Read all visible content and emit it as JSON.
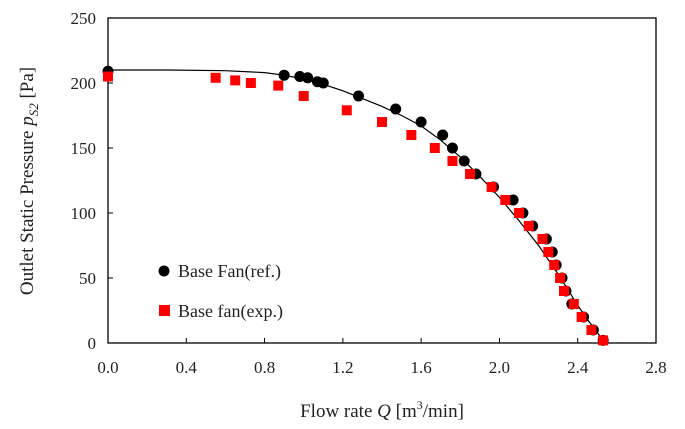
{
  "chart_data": {
    "type": "scatter",
    "title": "",
    "xlabel": "Flow rate Q [m³/min]",
    "ylabel": "Outlet Static Pressure p_S2 [Pa]",
    "xlabel_parts": {
      "prefix": "Flow rate ",
      "var": "Q",
      "unit_pre": " [m",
      "sup": "3",
      "unit_post": "/min]"
    },
    "ylabel_parts": {
      "prefix": "Outlet Static Pressure ",
      "var": "p",
      "sub": "S2",
      "unit": " [Pa]"
    },
    "xlim": [
      0,
      2.8
    ],
    "ylim": [
      0,
      250
    ],
    "x_ticks": [
      "0.0",
      "0.4",
      "0.8",
      "1.2",
      "1.6",
      "2.0",
      "2.4",
      "2.8"
    ],
    "y_ticks": [
      "0",
      "50",
      "100",
      "150",
      "200",
      "250"
    ],
    "grid": false,
    "legend_position": "bottom-left",
    "series": [
      {
        "name": "Base Fan(ref.)",
        "marker": "circle",
        "color": "#000000",
        "x": [
          0.0,
          0.9,
          0.98,
          1.02,
          1.07,
          1.1,
          1.28,
          1.47,
          1.6,
          1.71,
          1.76,
          1.82,
          1.88,
          1.97,
          2.07,
          2.12,
          2.17,
          2.24,
          2.27,
          2.29,
          2.32,
          2.34,
          2.37,
          2.43,
          2.48,
          2.53
        ],
        "y": [
          209,
          206,
          205,
          204,
          201,
          200,
          190,
          180,
          170,
          160,
          150,
          140,
          130,
          120,
          110,
          100,
          90,
          80,
          70,
          60,
          50,
          40,
          30,
          20,
          10,
          2
        ]
      },
      {
        "name": "Base fan(exp.)",
        "marker": "square",
        "color": "#ff0000",
        "x": [
          0.0,
          0.55,
          0.65,
          0.73,
          0.87,
          1.0,
          1.22,
          1.4,
          1.55,
          1.67,
          1.76,
          1.85,
          1.96,
          2.03,
          2.1,
          2.15,
          2.22,
          2.25,
          2.28,
          2.31,
          2.33,
          2.38,
          2.42,
          2.47,
          2.53
        ],
        "y": [
          205,
          204,
          202,
          200,
          198,
          190,
          179,
          170,
          160,
          150,
          140,
          130,
          120,
          110,
          100,
          90,
          80,
          70,
          60,
          50,
          40,
          30,
          20,
          10,
          2
        ]
      }
    ],
    "fit_curve": {
      "color": "#000000",
      "x": [
        0.0,
        0.3,
        0.6,
        0.8,
        0.9,
        1.0,
        1.1,
        1.2,
        1.3,
        1.4,
        1.5,
        1.6,
        1.7,
        1.8,
        1.9,
        2.0,
        2.1,
        2.2,
        2.3,
        2.4,
        2.45,
        2.5,
        2.54
      ],
      "y": [
        210,
        210,
        209.5,
        208,
        206,
        203,
        199,
        194,
        188,
        182,
        175,
        167,
        156,
        143,
        128,
        112,
        94,
        75,
        53,
        29,
        18,
        8,
        0
      ]
    }
  }
}
